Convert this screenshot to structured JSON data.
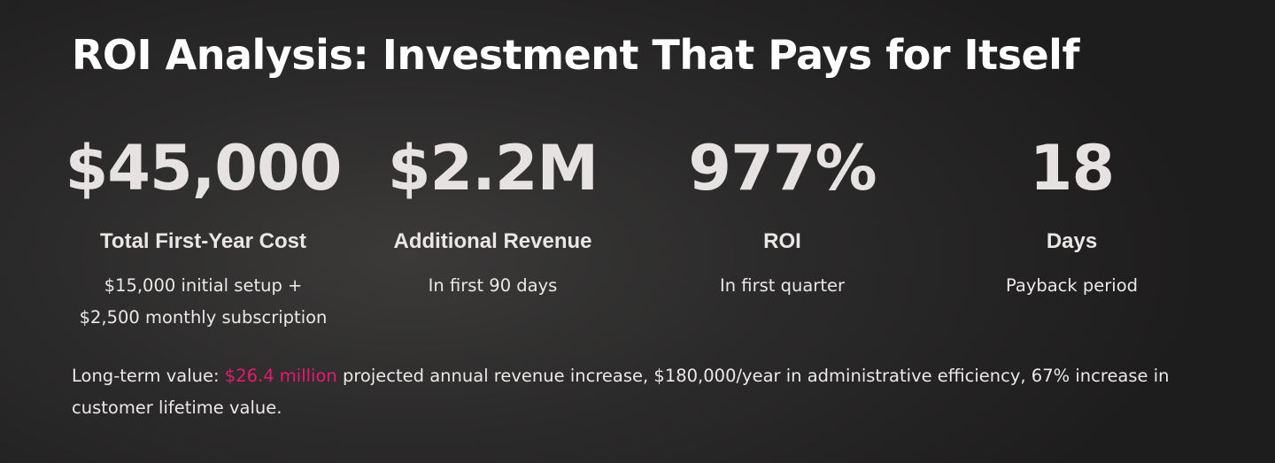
{
  "title": "ROI Analysis: Investment That Pays for Itself",
  "stats": [
    {
      "value": "$45,000",
      "label": "Total First-Year Cost",
      "desc_lines": [
        "$15,000 initial setup +",
        "$2,500 monthly subscription"
      ]
    },
    {
      "value": "$2.2M",
      "label": "Additional Revenue",
      "desc_lines": [
        "In first 90 days"
      ]
    },
    {
      "value": "977%",
      "label": "ROI",
      "desc_lines": [
        "In first quarter"
      ]
    },
    {
      "value": "18",
      "label": "Days",
      "desc_lines": [
        "Payback period"
      ]
    }
  ],
  "footnote": {
    "prefix": "Long-term value: ",
    "highlight": "$26.4 million",
    "suffix": " projected annual revenue increase, $180,000/year in administrative efficiency, 67% increase in customer lifetime value."
  },
  "colors": {
    "accent": "#e8186d",
    "background": "#2c2b2b",
    "text": "#f2eeee"
  }
}
